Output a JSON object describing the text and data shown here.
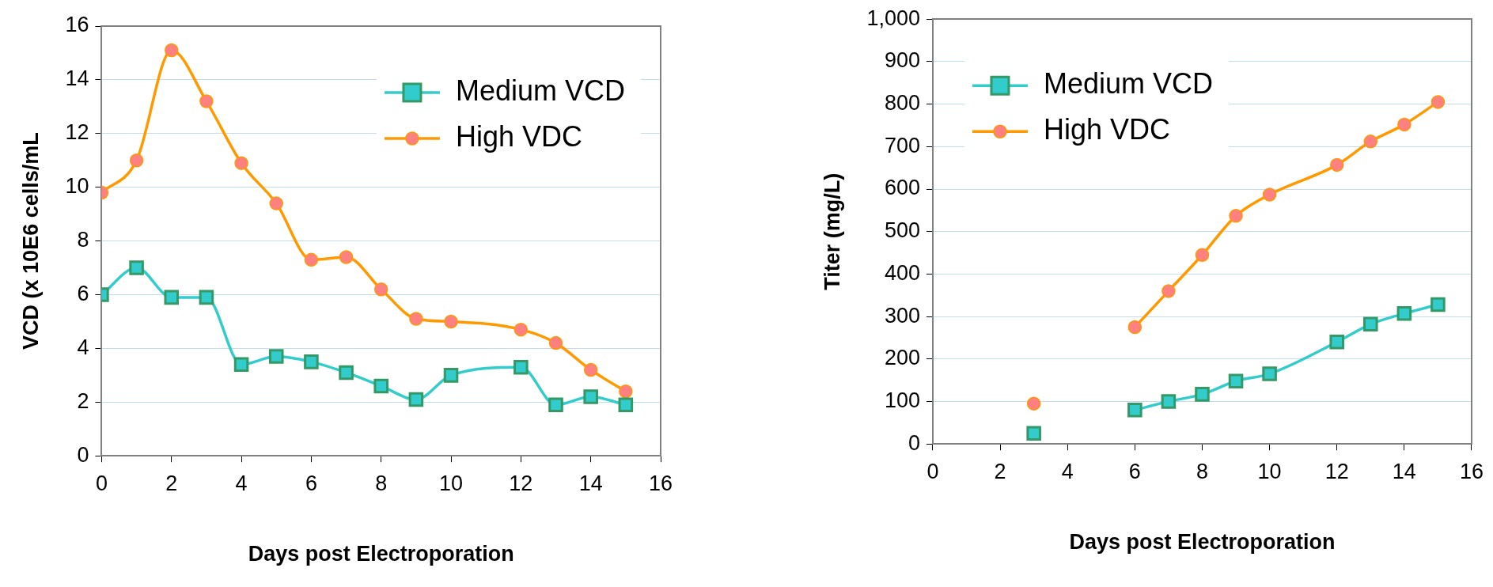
{
  "chart_data": [
    {
      "type": "line",
      "xlabel": "Days post Electroporation",
      "ylabel": "VCD (x 10E6 cells/mL",
      "x": [
        0,
        1,
        2,
        3,
        4,
        5,
        6,
        7,
        8,
        9,
        10,
        12,
        13,
        14,
        15
      ],
      "xlim": [
        0,
        16
      ],
      "xticks": [
        0,
        2,
        4,
        6,
        8,
        10,
        12,
        14,
        16
      ],
      "ylim": [
        0,
        16
      ],
      "yticks": [
        0,
        2,
        4,
        6,
        8,
        10,
        12,
        14,
        16
      ],
      "grid": "y",
      "legend": "top right",
      "series": [
        {
          "name": "Medium VCD",
          "color": "#33cccc",
          "marker": "square",
          "values": [
            6,
            7,
            5.9,
            5.9,
            3.4,
            3.7,
            3.5,
            3.1,
            2.6,
            2.1,
            3,
            3.3,
            1.9,
            2.2,
            1.9
          ]
        },
        {
          "name": "High VDC",
          "color": "#ff9900",
          "marker": "circle",
          "values": [
            9.8,
            11,
            15.1,
            13.2,
            10.9,
            9.4,
            7.3,
            7.4,
            6.2,
            5.1,
            5,
            4.7,
            4.2,
            3.2,
            2.4
          ]
        }
      ]
    },
    {
      "type": "line",
      "xlabel": "Days post Electroporation",
      "ylabel": "Titer (mg/L)",
      "x": [
        3,
        4,
        5,
        6,
        7,
        8,
        9,
        10,
        12,
        13,
        14,
        15
      ],
      "xlim": [
        0,
        16
      ],
      "xticks": [
        0,
        2,
        4,
        6,
        8,
        10,
        12,
        14,
        16
      ],
      "ylim": [
        0,
        1000
      ],
      "yticks": [
        0,
        100,
        200,
        300,
        400,
        500,
        600,
        700,
        800,
        900,
        {
          "value": 1000,
          "label": "1,000"
        }
      ],
      "grid": "y",
      "legend": "top left",
      "series": [
        {
          "name": "Medium VCD",
          "color": "#33cccc",
          "marker": "square",
          "values": [
            25,
            null,
            null,
            80,
            100,
            117,
            148,
            165,
            240,
            282,
            307,
            328
          ]
        },
        {
          "name": "High VDC",
          "color": "#ff9900",
          "marker": "circle",
          "values": [
            95,
            null,
            null,
            275,
            360,
            445,
            537,
            587,
            657,
            712,
            752,
            805
          ]
        }
      ]
    }
  ]
}
